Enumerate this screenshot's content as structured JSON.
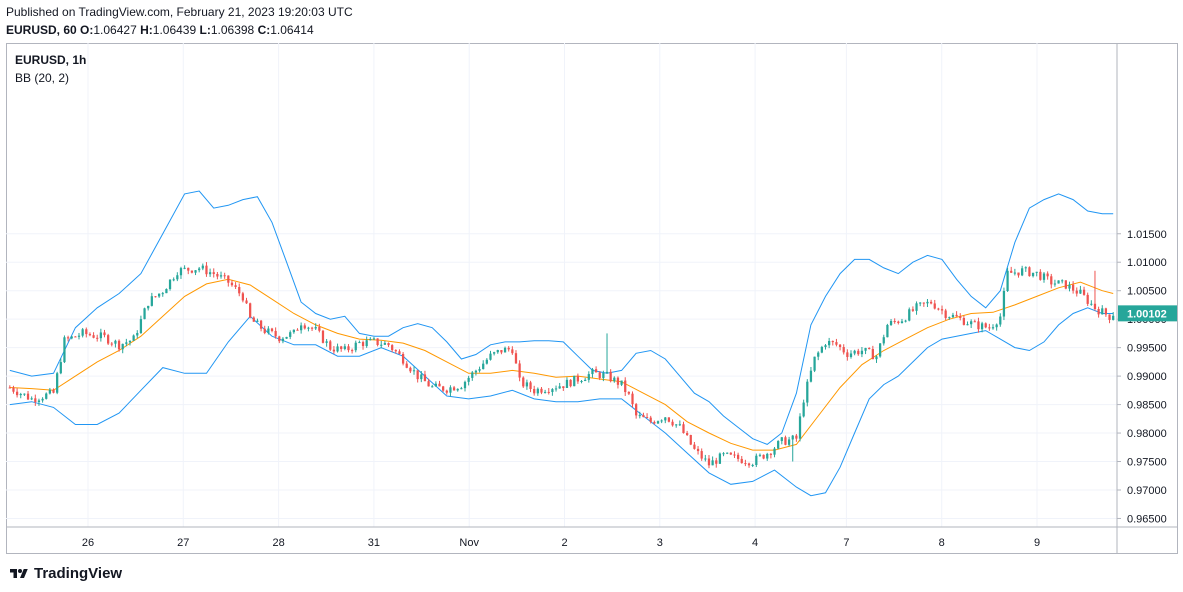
{
  "header": {
    "published": "Published on TradingView.com, February 21, 2023 19:20:03 UTC",
    "symbol_line": "EURUSD, 60",
    "o_label": "O:",
    "o": "1.06427",
    "h_label": "H:",
    "h": "1.06439",
    "l_label": "L:",
    "l": "1.06398",
    "c_label": "C:",
    "c": "1.06414"
  },
  "legend": {
    "symbol": "EURUSD, 1h",
    "indicator": "BB (20, 2)"
  },
  "footer": {
    "brand": "TradingView"
  },
  "colors": {
    "up": "#26a69a",
    "down": "#ef5350",
    "band": "#2196f3",
    "basis": "#ff9800",
    "grid": "#f0f3fa",
    "axis": "#b2b5be",
    "last_price_bg": "#26a69a"
  },
  "chart_data": {
    "type": "candlestick",
    "title": "EURUSD, 1h",
    "indicator": "Bollinger Bands (20, 2)",
    "ylim": [
      0.9635,
      1.0485
    ],
    "y_ticks": [
      "1.01500",
      "1.01000",
      "1.00500",
      "1.00000",
      "0.99500",
      "0.99000",
      "0.98500",
      "0.98000",
      "0.97500",
      "0.97000",
      "0.96500"
    ],
    "x_ticks": [
      "26",
      "27",
      "28",
      "31",
      "Nov",
      "2",
      "3",
      "4",
      "7",
      "8",
      "9"
    ],
    "last_price": "1.00102",
    "close_path": [
      [
        0,
        0.988
      ],
      [
        6,
        0.986
      ],
      [
        12,
        0.987
      ],
      [
        15,
        0.9962
      ],
      [
        20,
        0.9975
      ],
      [
        26,
        0.9968
      ],
      [
        30,
        0.9955
      ],
      [
        34,
        0.9965
      ],
      [
        38,
        1.003
      ],
      [
        42,
        1.005
      ],
      [
        46,
        1.0085
      ],
      [
        52,
        1.009
      ],
      [
        56,
        1.008
      ],
      [
        60,
        1.0065
      ],
      [
        64,
        1.004
      ],
      [
        66,
        1.0
      ],
      [
        70,
        0.998
      ],
      [
        74,
        0.9968
      ],
      [
        78,
        0.9975
      ],
      [
        80,
        0.9995
      ],
      [
        84,
        0.998
      ],
      [
        88,
        0.995
      ],
      [
        92,
        0.9945
      ],
      [
        96,
        0.9958
      ],
      [
        100,
        0.996
      ],
      [
        104,
        0.9955
      ],
      [
        108,
        0.993
      ],
      [
        112,
        0.99
      ],
      [
        116,
        0.988
      ],
      [
        120,
        0.9878
      ],
      [
        124,
        0.9885
      ],
      [
        128,
        0.991
      ],
      [
        132,
        0.9935
      ],
      [
        135,
        0.9945
      ],
      [
        138,
        0.9948
      ],
      [
        140,
        0.989
      ],
      [
        144,
        0.9875
      ],
      [
        148,
        0.988
      ],
      [
        152,
        0.9885
      ],
      [
        156,
        0.9895
      ],
      [
        160,
        0.9905
      ],
      [
        164,
        0.99
      ],
      [
        168,
        0.9885
      ],
      [
        170,
        0.9865
      ],
      [
        172,
        0.983
      ],
      [
        176,
        0.982
      ],
      [
        180,
        0.983
      ],
      [
        184,
        0.981
      ],
      [
        188,
        0.977
      ],
      [
        192,
        0.9745
      ],
      [
        196,
        0.976
      ],
      [
        200,
        0.9755
      ],
      [
        204,
        0.975
      ],
      [
        208,
        0.9765
      ],
      [
        212,
        0.9785
      ],
      [
        216,
        0.979
      ],
      [
        218,
        0.986
      ],
      [
        221,
        0.993
      ],
      [
        224,
        0.996
      ],
      [
        227,
        0.9955
      ],
      [
        230,
        0.994
      ],
      [
        234,
        0.9945
      ],
      [
        238,
        0.9935
      ],
      [
        241,
        0.999
      ],
      [
        245,
        1.0
      ],
      [
        249,
        1.002
      ],
      [
        253,
        1.003
      ],
      [
        257,
        1.001
      ],
      [
        261,
        1.0
      ],
      [
        265,
        0.999
      ],
      [
        269,
        0.9985
      ],
      [
        272,
        1.0005
      ],
      [
        274,
        1.008
      ],
      [
        278,
        1.0085
      ],
      [
        282,
        1.008
      ],
      [
        286,
        1.0065
      ],
      [
        290,
        1.006
      ],
      [
        294,
        1.0045
      ],
      [
        298,
        1.002
      ],
      [
        302,
        1.0005
      ],
      [
        303,
        1.001
      ]
    ],
    "wicks": [
      {
        "index": 164,
        "high": 0.9975
      },
      {
        "index": 215,
        "low": 0.975
      },
      {
        "index": 298,
        "high": 1.0085
      }
    ],
    "bb_upper_path": [
      [
        0,
        0.991
      ],
      [
        6,
        0.99
      ],
      [
        12,
        0.9905
      ],
      [
        18,
        0.9985
      ],
      [
        24,
        1.002
      ],
      [
        30,
        1.0045
      ],
      [
        36,
        1.008
      ],
      [
        42,
        1.015
      ],
      [
        48,
        1.022
      ],
      [
        52,
        1.0225
      ],
      [
        56,
        1.0195
      ],
      [
        60,
        1.02
      ],
      [
        64,
        1.021
      ],
      [
        68,
        1.0215
      ],
      [
        72,
        1.017
      ],
      [
        76,
        1.01
      ],
      [
        80,
        1.003
      ],
      [
        84,
        1.001
      ],
      [
        88,
        1.0
      ],
      [
        92,
        1.0005
      ],
      [
        96,
        0.9975
      ],
      [
        100,
        0.997
      ],
      [
        104,
        0.997
      ],
      [
        108,
        0.9985
      ],
      [
        112,
        0.9992
      ],
      [
        116,
        0.9985
      ],
      [
        120,
        0.996
      ],
      [
        124,
        0.993
      ],
      [
        128,
        0.9938
      ],
      [
        132,
        0.9955
      ],
      [
        136,
        0.996
      ],
      [
        140,
        0.996
      ],
      [
        144,
        0.9962
      ],
      [
        148,
        0.9962
      ],
      [
        152,
        0.996
      ],
      [
        156,
        0.9935
      ],
      [
        160,
        0.991
      ],
      [
        164,
        0.9905
      ],
      [
        168,
        0.991
      ],
      [
        172,
        0.994
      ],
      [
        176,
        0.9945
      ],
      [
        180,
        0.993
      ],
      [
        184,
        0.99
      ],
      [
        188,
        0.987
      ],
      [
        192,
        0.9855
      ],
      [
        196,
        0.983
      ],
      [
        200,
        0.981
      ],
      [
        204,
        0.979
      ],
      [
        208,
        0.978
      ],
      [
        212,
        0.98
      ],
      [
        216,
        0.987
      ],
      [
        220,
        0.999
      ],
      [
        224,
        1.004
      ],
      [
        228,
        1.008
      ],
      [
        232,
        1.0105
      ],
      [
        236,
        1.0105
      ],
      [
        240,
        1.009
      ],
      [
        244,
        1.008
      ],
      [
        248,
        1.01
      ],
      [
        252,
        1.0112
      ],
      [
        256,
        1.0105
      ],
      [
        260,
        1.007
      ],
      [
        264,
        1.004
      ],
      [
        268,
        1.002
      ],
      [
        272,
        1.005
      ],
      [
        276,
        1.0135
      ],
      [
        280,
        1.0195
      ],
      [
        284,
        1.021
      ],
      [
        288,
        1.022
      ],
      [
        292,
        1.021
      ],
      [
        296,
        1.019
      ],
      [
        300,
        1.0185
      ],
      [
        303,
        1.0185
      ]
    ],
    "bb_basis_path": [
      [
        0,
        0.988
      ],
      [
        6,
        0.9878
      ],
      [
        12,
        0.9875
      ],
      [
        18,
        0.99
      ],
      [
        24,
        0.9925
      ],
      [
        30,
        0.9945
      ],
      [
        36,
        0.997
      ],
      [
        42,
        1.0005
      ],
      [
        48,
        1.004
      ],
      [
        54,
        1.0062
      ],
      [
        60,
        1.007
      ],
      [
        66,
        1.006
      ],
      [
        72,
        1.0035
      ],
      [
        78,
        1.001
      ],
      [
        84,
        0.999
      ],
      [
        90,
        0.9975
      ],
      [
        96,
        0.9965
      ],
      [
        102,
        0.9963
      ],
      [
        108,
        0.9958
      ],
      [
        114,
        0.9945
      ],
      [
        120,
        0.9925
      ],
      [
        126,
        0.9905
      ],
      [
        132,
        0.9905
      ],
      [
        138,
        0.991
      ],
      [
        144,
        0.9905
      ],
      [
        150,
        0.9898
      ],
      [
        156,
        0.99
      ],
      [
        162,
        0.9895
      ],
      [
        168,
        0.989
      ],
      [
        174,
        0.987
      ],
      [
        180,
        0.985
      ],
      [
        186,
        0.982
      ],
      [
        192,
        0.98
      ],
      [
        198,
        0.9782
      ],
      [
        204,
        0.977
      ],
      [
        210,
        0.977
      ],
      [
        216,
        0.978
      ],
      [
        222,
        0.983
      ],
      [
        228,
        0.988
      ],
      [
        234,
        0.992
      ],
      [
        240,
        0.9945
      ],
      [
        246,
        0.9965
      ],
      [
        252,
        0.9985
      ],
      [
        258,
        1.0
      ],
      [
        264,
        1.001
      ],
      [
        270,
        1.0012
      ],
      [
        276,
        1.0025
      ],
      [
        282,
        1.004
      ],
      [
        288,
        1.0055
      ],
      [
        294,
        1.0065
      ],
      [
        300,
        1.005
      ],
      [
        303,
        1.0045
      ]
    ],
    "bb_lower_path": [
      [
        0,
        0.985
      ],
      [
        6,
        0.9855
      ],
      [
        12,
        0.9845
      ],
      [
        18,
        0.9815
      ],
      [
        24,
        0.9815
      ],
      [
        30,
        0.9835
      ],
      [
        36,
        0.9875
      ],
      [
        42,
        0.9915
      ],
      [
        48,
        0.9905
      ],
      [
        54,
        0.9905
      ],
      [
        60,
        0.996
      ],
      [
        66,
        1.0005
      ],
      [
        72,
        0.997
      ],
      [
        78,
        0.9955
      ],
      [
        84,
        0.9955
      ],
      [
        90,
        0.9935
      ],
      [
        96,
        0.9935
      ],
      [
        102,
        0.995
      ],
      [
        108,
        0.9935
      ],
      [
        114,
        0.99
      ],
      [
        120,
        0.9865
      ],
      [
        126,
        0.986
      ],
      [
        132,
        0.9865
      ],
      [
        138,
        0.9875
      ],
      [
        144,
        0.986
      ],
      [
        150,
        0.9855
      ],
      [
        156,
        0.9855
      ],
      [
        162,
        0.986
      ],
      [
        168,
        0.986
      ],
      [
        174,
        0.983
      ],
      [
        180,
        0.98
      ],
      [
        186,
        0.9765
      ],
      [
        192,
        0.973
      ],
      [
        198,
        0.971
      ],
      [
        204,
        0.9715
      ],
      [
        210,
        0.9735
      ],
      [
        216,
        0.9705
      ],
      [
        220,
        0.969
      ],
      [
        224,
        0.9695
      ],
      [
        228,
        0.974
      ],
      [
        232,
        0.98
      ],
      [
        236,
        0.986
      ],
      [
        240,
        0.9885
      ],
      [
        244,
        0.99
      ],
      [
        248,
        0.9925
      ],
      [
        252,
        0.995
      ],
      [
        256,
        0.9965
      ],
      [
        260,
        0.997
      ],
      [
        264,
        0.9975
      ],
      [
        268,
        0.998
      ],
      [
        272,
        0.9965
      ],
      [
        276,
        0.995
      ],
      [
        280,
        0.9945
      ],
      [
        284,
        0.996
      ],
      [
        288,
        0.999
      ],
      [
        292,
        1.001
      ],
      [
        296,
        1.002
      ],
      [
        300,
        1.001
      ],
      [
        303,
        1.001
      ]
    ]
  }
}
